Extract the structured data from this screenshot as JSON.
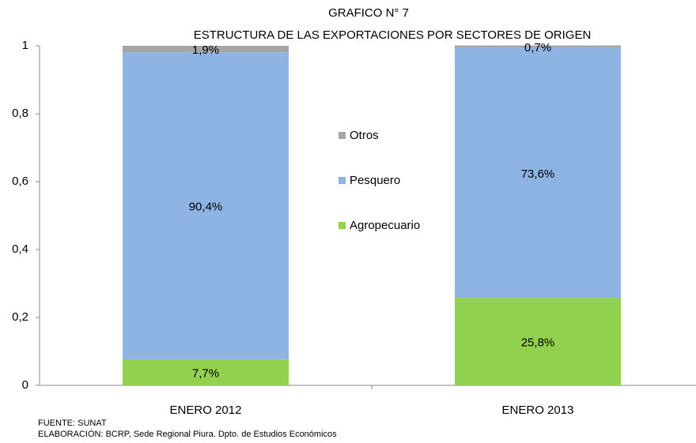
{
  "chart_data": {
    "type": "stacked_bar",
    "title": "GRAFICO N° 7",
    "subtitle": "ESTRUCTURA DE LAS EXPORTACIONES  POR SECTORES DE ORIGEN",
    "categories": [
      "ENERO 2012",
      "ENERO 2013"
    ],
    "series": [
      {
        "name": "Agropecuario",
        "color": "#92d050",
        "values": [
          0.077,
          0.258
        ],
        "value_labels": [
          "7,7%",
          "25,8%"
        ]
      },
      {
        "name": "Pesquero",
        "color": "#8eb4e3",
        "values": [
          0.904,
          0.736
        ],
        "value_labels": [
          "90,4%",
          "73,6%"
        ]
      },
      {
        "name": "Otros",
        "color": "#a6a6a6",
        "values": [
          0.019,
          0.007
        ],
        "value_labels": [
          "1,9%",
          "0,7%"
        ]
      }
    ],
    "ylim": [
      0,
      1
    ],
    "yticks": [
      0,
      {
        "value": 0.2,
        "label": "0,2"
      },
      {
        "value": 0.4,
        "label": "0,4"
      },
      {
        "value": 0.6,
        "label": "0,6"
      },
      {
        "value": 0.8,
        "label": "0,8"
      },
      1
    ],
    "legend": "center",
    "source": "FUENTE: SUNAT",
    "credit": "ELABORACIÓN: BCRP, Sede Regional Piura. Dpto. de Estudios Económicos"
  }
}
